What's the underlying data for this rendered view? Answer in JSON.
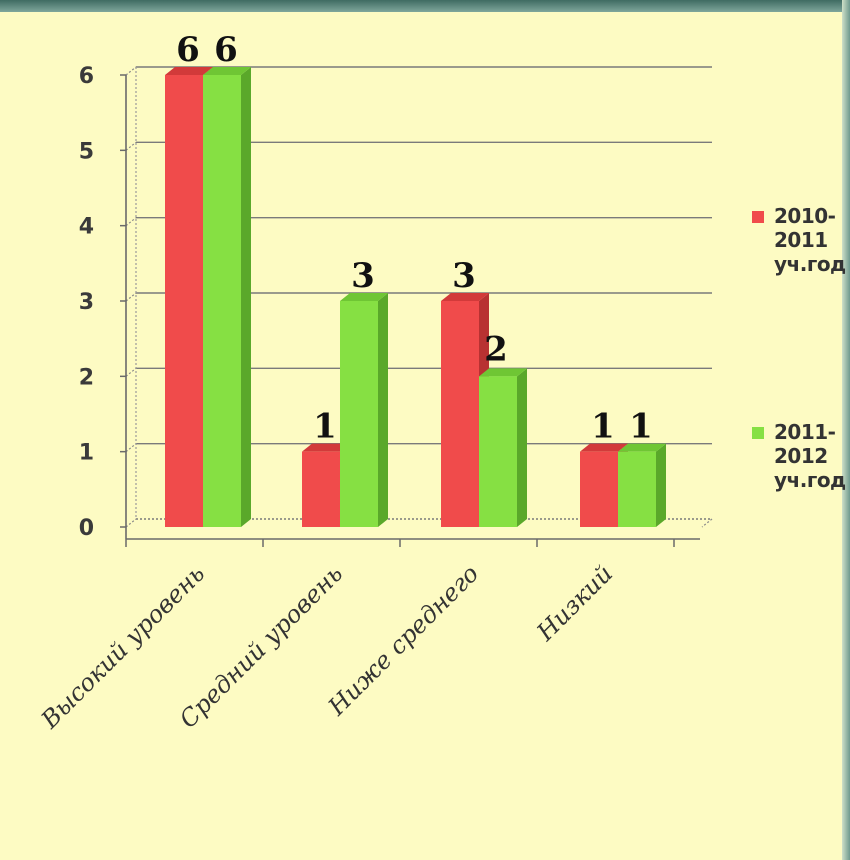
{
  "chart_data": {
    "type": "bar",
    "categories": [
      "Высокий уровень",
      "Средний уровень",
      "Ниже среднего",
      "Низкий"
    ],
    "series": [
      {
        "name": "2010-2011 уч.год",
        "values": [
          6,
          1,
          3,
          1
        ],
        "color": "#f04b4b"
      },
      {
        "name": "2011-2012 уч.год",
        "values": [
          6,
          3,
          2,
          1
        ],
        "color": "#86e043"
      }
    ],
    "yticks": [
      "0",
      "1",
      "2",
      "3",
      "4",
      "5",
      "6"
    ],
    "ylim": [
      0,
      6
    ],
    "grid": true,
    "legend_position": "right",
    "three_d": true
  },
  "legend": {
    "item1_lines": [
      "2010-",
      "2011",
      "уч.год"
    ],
    "item2_lines": [
      "2011-",
      "2012",
      "уч.год"
    ]
  }
}
